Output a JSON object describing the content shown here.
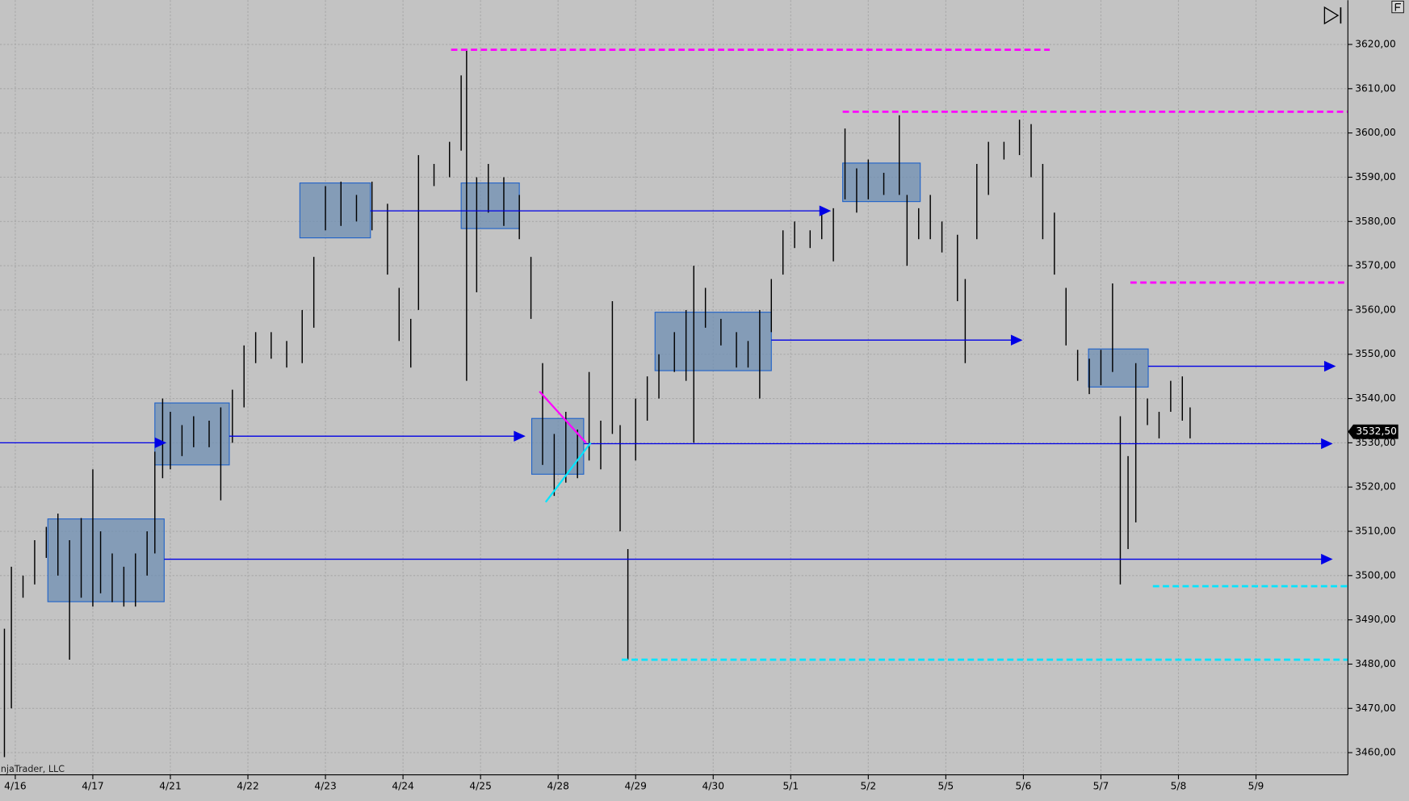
{
  "chart_data": {
    "type": "range",
    "watermark": "injaTrader, LLC",
    "xlim": [
      -0.197,
      17.185
    ],
    "ylim": [
      3455,
      3630
    ],
    "grid": true,
    "bar_color": "#000000",
    "xticks": [
      {
        "value": 0,
        "label": "4/16"
      },
      {
        "value": 1,
        "label": "4/17"
      },
      {
        "value": 2,
        "label": "4/21"
      },
      {
        "value": 3,
        "label": "4/22"
      },
      {
        "value": 4,
        "label": "4/23"
      },
      {
        "value": 5,
        "label": "4/24"
      },
      {
        "value": 6,
        "label": "4/25"
      },
      {
        "value": 7,
        "label": "4/28"
      },
      {
        "value": 8,
        "label": "4/29"
      },
      {
        "value": 9,
        "label": "4/30"
      },
      {
        "value": 10,
        "label": "5/1"
      },
      {
        "value": 11,
        "label": "5/2"
      },
      {
        "value": 12,
        "label": "5/5"
      },
      {
        "value": 13,
        "label": "5/6"
      },
      {
        "value": 14,
        "label": "5/7"
      },
      {
        "value": 15,
        "label": "5/8"
      },
      {
        "value": 16,
        "label": "5/9"
      }
    ],
    "yticks": [
      {
        "value": 3460,
        "label": "3460,00"
      },
      {
        "value": 3470,
        "label": "3470,00"
      },
      {
        "value": 3480,
        "label": "3480,00"
      },
      {
        "value": 3490,
        "label": "3490,00"
      },
      {
        "value": 3500,
        "label": "3500,00"
      },
      {
        "value": 3510,
        "label": "3510,00"
      },
      {
        "value": 3520,
        "label": "3520,00"
      },
      {
        "value": 3530,
        "label": "3530,00"
      },
      {
        "value": 3540,
        "label": "3540,00"
      },
      {
        "value": 3550,
        "label": "3550,00"
      },
      {
        "value": 3560,
        "label": "3560,00"
      },
      {
        "value": 3570,
        "label": "3570,00"
      },
      {
        "value": 3580,
        "label": "3580,00"
      },
      {
        "value": 3590,
        "label": "3590,00"
      },
      {
        "value": 3600,
        "label": "3600,00"
      },
      {
        "value": 3610,
        "label": "3610,00"
      },
      {
        "value": 3620,
        "label": "3620,00"
      }
    ],
    "last_price": {
      "value": 3532.5,
      "label": "3532,50"
    },
    "x": [
      -0.14,
      -0.05,
      0.1,
      0.25,
      0.4,
      0.55,
      0.7,
      0.85,
      1.0,
      1.1,
      1.25,
      1.4,
      1.55,
      1.7,
      1.8,
      1.9,
      2.0,
      2.15,
      2.3,
      2.5,
      2.65,
      2.8,
      2.95,
      3.1,
      3.3,
      3.5,
      3.7,
      3.85,
      4.0,
      4.2,
      4.4,
      4.6,
      4.8,
      4.95,
      5.1,
      5.2,
      5.4,
      5.6,
      5.75,
      5.82,
      5.95,
      6.1,
      6.3,
      6.5,
      6.65,
      6.8,
      6.95,
      7.1,
      7.25,
      7.4,
      7.55,
      7.7,
      7.8,
      7.9,
      8.0,
      8.15,
      8.3,
      8.5,
      8.65,
      8.75,
      8.9,
      9.1,
      9.3,
      9.45,
      9.6,
      9.75,
      9.9,
      10.05,
      10.25,
      10.4,
      10.55,
      10.7,
      10.85,
      11.0,
      11.2,
      11.4,
      11.5,
      11.65,
      11.8,
      11.95,
      12.15,
      12.25,
      12.4,
      12.55,
      12.75,
      12.95,
      13.1,
      13.25,
      13.4,
      13.55,
      13.7,
      13.85,
      14.0,
      14.15,
      14.25,
      14.35,
      14.45,
      14.6,
      14.75,
      14.9,
      15.05,
      15.15
    ],
    "high": [
      3488,
      3502,
      3500,
      3508,
      3511,
      3514,
      3508,
      3513,
      3524,
      3510,
      3505,
      3502,
      3505,
      3510,
      3528,
      3540,
      3537,
      3534,
      3536,
      3535,
      3538,
      3542,
      3552,
      3555,
      3555,
      3553,
      3560,
      3572,
      3588,
      3589,
      3586,
      3589,
      3584,
      3565,
      3558,
      3595,
      3593,
      3598,
      3613,
      3619,
      3590,
      3593,
      3590,
      3586,
      3572,
      3548,
      3532,
      3537,
      3533,
      3546,
      3535,
      3562,
      3534,
      3506,
      3540,
      3545,
      3550,
      3555,
      3560,
      3570,
      3565,
      3558,
      3555,
      3553,
      3560,
      3567,
      3578,
      3580,
      3578,
      3583,
      3583,
      3601,
      3592,
      3594,
      3591,
      3604,
      3586,
      3583,
      3586,
      3580,
      3577,
      3567,
      3593,
      3598,
      3598,
      3603,
      3602,
      3593,
      3582,
      3565,
      3551,
      3549,
      3551,
      3566,
      3536,
      3527,
      3548,
      3540,
      3537,
      3544,
      3545,
      3538
    ],
    "low": [
      3459,
      3470,
      3495,
      3498,
      3504,
      3500,
      3481,
      3495,
      3493,
      3496,
      3494,
      3493,
      3493,
      3500,
      3505,
      3522,
      3524,
      3527,
      3529,
      3529,
      3517,
      3530,
      3538,
      3548,
      3549,
      3547,
      3548,
      3556,
      3578,
      3579,
      3580,
      3578,
      3568,
      3553,
      3547,
      3560,
      3588,
      3590,
      3596,
      3544,
      3564,
      3582,
      3579,
      3576,
      3558,
      3525,
      3518,
      3521,
      3522,
      3526,
      3524,
      3532,
      3510,
      3481,
      3526,
      3535,
      3540,
      3546,
      3544,
      3530,
      3556,
      3552,
      3547,
      3547,
      3540,
      3555,
      3568,
      3574,
      3574,
      3576,
      3571,
      3585,
      3582,
      3585,
      3586,
      3586,
      3570,
      3576,
      3576,
      3573,
      3562,
      3548,
      3576,
      3586,
      3594,
      3595,
      3590,
      3576,
      3568,
      3552,
      3544,
      3541,
      3543,
      3546,
      3498,
      3506,
      3512,
      3534,
      3531,
      3537,
      3535,
      3531
    ],
    "rectangles": {
      "fill": "#6f8fb3",
      "stroke": "#1f62c8",
      "items": [
        {
          "x": [
            0.42,
            1.92
          ],
          "y": [
            3494.1,
            3512.8
          ]
        },
        {
          "x": [
            1.8,
            2.76
          ],
          "y": [
            3525.0,
            3539.0
          ]
        },
        {
          "x": [
            3.67,
            4.58
          ],
          "y": [
            3576.3,
            3588.7
          ]
        },
        {
          "x": [
            5.75,
            6.5
          ],
          "y": [
            3578.4,
            3588.7
          ]
        },
        {
          "x": [
            6.66,
            7.33
          ],
          "y": [
            3522.9,
            3535.5
          ]
        },
        {
          "x": [
            8.25,
            9.75
          ],
          "y": [
            3546.3,
            3559.5
          ]
        },
        {
          "x": [
            10.67,
            11.67
          ],
          "y": [
            3584.5,
            3593.2
          ]
        },
        {
          "x": [
            13.84,
            14.61
          ],
          "y": [
            3542.6,
            3551.2
          ]
        }
      ]
    },
    "arrows": {
      "color": "#0000e6",
      "items": [
        {
          "x": [
            -0.2,
            1.95
          ],
          "y": 3530.0
        },
        {
          "x": [
            2.76,
            6.58
          ],
          "y": 3531.5
        },
        {
          "x": [
            4.58,
            10.52
          ],
          "y": 3582.4
        },
        {
          "x": [
            1.92,
            16.99
          ],
          "y": 3503.7
        },
        {
          "x": [
            7.33,
            16.99
          ],
          "y": 3529.8
        },
        {
          "x": [
            9.75,
            12.99
          ],
          "y": 3553.2
        },
        {
          "x": [
            14.61,
            17.03
          ],
          "y": 3547.3
        }
      ]
    },
    "dashed_lines": [
      {
        "x": [
          5.62,
          13.34
        ],
        "y": 3618.8,
        "color": "#ff00ff"
      },
      {
        "x": [
          10.67,
          17.19
        ],
        "y": 3604.8,
        "color": "#ff00ff"
      },
      {
        "x": [
          14.38,
          17.19
        ],
        "y": 3566.2,
        "color": "#ff00ff"
      },
      {
        "x": [
          7.82,
          17.19
        ],
        "y": 3481.0,
        "color": "#00e5ff"
      },
      {
        "x": [
          14.67,
          17.19
        ],
        "y": 3497.6,
        "color": "#00e5ff"
      }
    ],
    "trend_lines": [
      {
        "x": [
          6.76,
          7.36
        ],
        "y": [
          3541.6,
          3530.0
        ],
        "color": "#ff00ff"
      },
      {
        "x": [
          6.84,
          7.42
        ],
        "y": [
          3516.6,
          3530.0
        ],
        "color": "#00e5ff"
      }
    ]
  }
}
